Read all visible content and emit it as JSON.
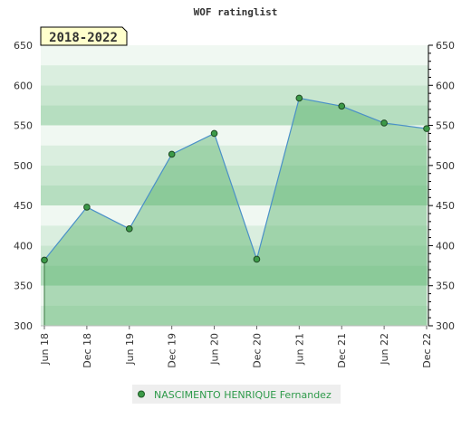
{
  "chart_data": {
    "type": "area",
    "title": "WOF ratinglist",
    "period_label": "2018-2022",
    "xlabel": "",
    "ylabel": "",
    "x_ticks": [
      "Jun 18",
      "Dec 18",
      "Jun 19",
      "Dec 19",
      "Jun 20",
      "Dec 20",
      "Jun 21",
      "Dec 21",
      "Jun 22",
      "Dec 22"
    ],
    "ylim": [
      300,
      650
    ],
    "y_ticks": [
      300,
      350,
      400,
      450,
      500,
      550,
      600,
      650
    ],
    "grid": true,
    "legend_position": "bottom-center",
    "series": [
      {
        "name": "NASCIMENTO HENRIQUE Fernandez",
        "x": [
          "Jun 18",
          "Dec 18",
          "Jun 19",
          "Dec 19",
          "Jun 20",
          "Dec 20",
          "Jun 21",
          "Dec 21",
          "Jun 22",
          "Dec 22"
        ],
        "values": [
          382,
          448,
          421,
          514,
          540,
          383,
          584,
          574,
          553,
          546
        ]
      }
    ],
    "colors": {
      "line": "#4a90c8",
      "marker": "#3c9a48",
      "area": "#56b26a",
      "legend_text": "#2e9a4a",
      "period_badge": "#ffffcc"
    }
  }
}
